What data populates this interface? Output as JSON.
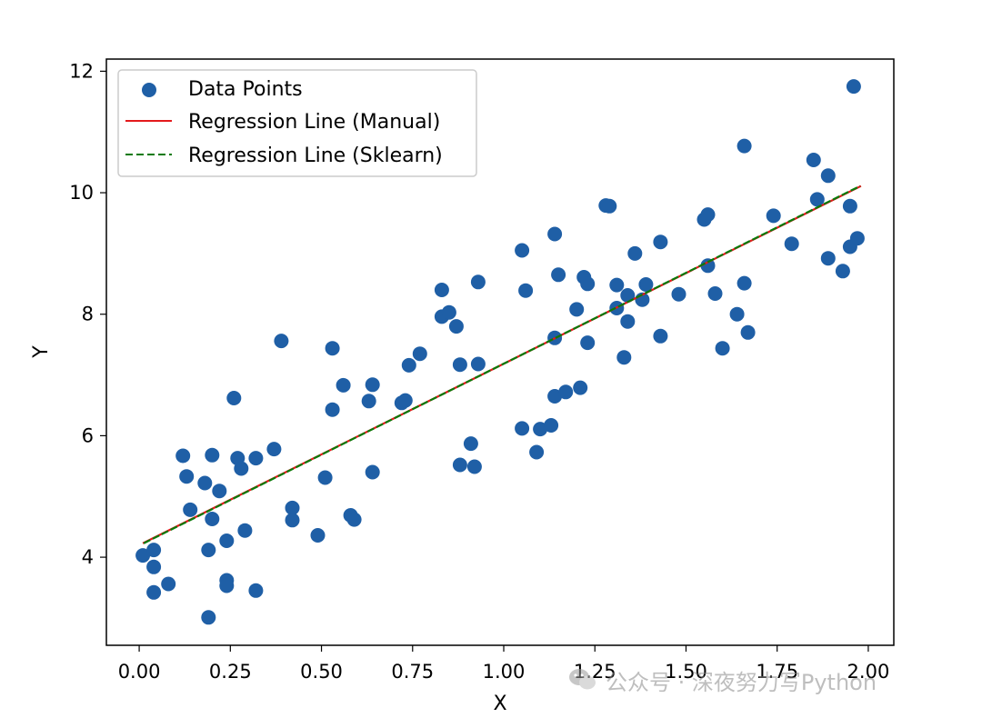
{
  "colors": {
    "points": "#1f5fa6",
    "manual_line": "#e41a1c",
    "sklearn_line": "#0a7a0a"
  },
  "watermark": {
    "text": "公众号 · 深夜努力写Python",
    "icon": "wechat-icon"
  },
  "chart_data": {
    "type": "scatter",
    "title": "",
    "xlabel": "X",
    "ylabel": "Y",
    "xlim": [
      -0.09,
      2.07
    ],
    "ylim": [
      2.55,
      12.2
    ],
    "xticks": [
      "0.00",
      "0.25",
      "0.50",
      "0.75",
      "1.00",
      "1.25",
      "1.50",
      "1.75",
      "2.00"
    ],
    "yticks": [
      "4",
      "6",
      "8",
      "10",
      "12"
    ],
    "grid": false,
    "legend": {
      "placement": "top-left",
      "entries": [
        "Data Points",
        "Regression Line (Manual)",
        "Regression Line (Sklearn)"
      ]
    },
    "series": [
      {
        "name": "Data Points",
        "kind": "scatter",
        "points": [
          [
            0.01,
            4.03
          ],
          [
            0.04,
            4.12
          ],
          [
            0.04,
            3.84
          ],
          [
            0.04,
            3.42
          ],
          [
            0.08,
            3.56
          ],
          [
            0.12,
            5.67
          ],
          [
            0.13,
            5.33
          ],
          [
            0.14,
            4.78
          ],
          [
            0.18,
            5.22
          ],
          [
            0.19,
            3.01
          ],
          [
            0.19,
            4.12
          ],
          [
            0.2,
            5.68
          ],
          [
            0.2,
            4.63
          ],
          [
            0.22,
            5.09
          ],
          [
            0.24,
            4.27
          ],
          [
            0.24,
            3.62
          ],
          [
            0.24,
            3.53
          ],
          [
            0.26,
            6.62
          ],
          [
            0.27,
            5.63
          ],
          [
            0.28,
            5.46
          ],
          [
            0.29,
            4.44
          ],
          [
            0.32,
            3.45
          ],
          [
            0.32,
            5.63
          ],
          [
            0.37,
            5.78
          ],
          [
            0.39,
            7.56
          ],
          [
            0.42,
            4.81
          ],
          [
            0.42,
            4.61
          ],
          [
            0.49,
            4.36
          ],
          [
            0.51,
            5.31
          ],
          [
            0.53,
            7.44
          ],
          [
            0.53,
            6.43
          ],
          [
            0.56,
            6.83
          ],
          [
            0.58,
            4.69
          ],
          [
            0.59,
            4.62
          ],
          [
            0.63,
            6.57
          ],
          [
            0.64,
            6.84
          ],
          [
            0.64,
            5.4
          ],
          [
            0.72,
            6.54
          ],
          [
            0.73,
            6.58
          ],
          [
            0.74,
            7.16
          ],
          [
            0.77,
            7.35
          ],
          [
            0.83,
            8.4
          ],
          [
            0.83,
            7.96
          ],
          [
            0.85,
            8.03
          ],
          [
            0.87,
            7.8
          ],
          [
            0.88,
            5.52
          ],
          [
            0.88,
            7.17
          ],
          [
            0.91,
            5.87
          ],
          [
            0.92,
            5.49
          ],
          [
            0.93,
            8.53
          ],
          [
            0.93,
            7.18
          ],
          [
            1.05,
            9.05
          ],
          [
            1.05,
            6.12
          ],
          [
            1.06,
            8.39
          ],
          [
            1.09,
            5.73
          ],
          [
            1.1,
            6.11
          ],
          [
            1.13,
            6.17
          ],
          [
            1.14,
            9.32
          ],
          [
            1.14,
            7.61
          ],
          [
            1.14,
            6.65
          ],
          [
            1.15,
            8.65
          ],
          [
            1.17,
            6.72
          ],
          [
            1.2,
            8.08
          ],
          [
            1.21,
            6.79
          ],
          [
            1.22,
            8.61
          ],
          [
            1.23,
            7.53
          ],
          [
            1.23,
            8.5
          ],
          [
            1.28,
            9.79
          ],
          [
            1.29,
            9.78
          ],
          [
            1.31,
            8.48
          ],
          [
            1.31,
            8.1
          ],
          [
            1.33,
            7.29
          ],
          [
            1.34,
            8.31
          ],
          [
            1.34,
            7.88
          ],
          [
            1.36,
            9.0
          ],
          [
            1.38,
            8.24
          ],
          [
            1.39,
            8.49
          ],
          [
            1.43,
            9.19
          ],
          [
            1.43,
            7.64
          ],
          [
            1.48,
            8.33
          ],
          [
            1.55,
            9.56
          ],
          [
            1.56,
            9.64
          ],
          [
            1.56,
            8.8
          ],
          [
            1.58,
            8.34
          ],
          [
            1.6,
            7.44
          ],
          [
            1.64,
            8.0
          ],
          [
            1.66,
            10.77
          ],
          [
            1.66,
            8.51
          ],
          [
            1.67,
            7.7
          ],
          [
            1.74,
            9.62
          ],
          [
            1.79,
            9.16
          ],
          [
            1.85,
            10.54
          ],
          [
            1.86,
            9.89
          ],
          [
            1.89,
            10.28
          ],
          [
            1.89,
            8.92
          ],
          [
            1.93,
            8.71
          ],
          [
            1.95,
            9.78
          ],
          [
            1.95,
            9.11
          ],
          [
            1.96,
            11.75
          ],
          [
            1.97,
            9.25
          ]
        ]
      },
      {
        "name": "Regression Line (Manual)",
        "kind": "line-solid",
        "x": [
          0.01,
          1.98
        ],
        "y": [
          4.23,
          10.11
        ]
      },
      {
        "name": "Regression Line (Sklearn)",
        "kind": "line-dashed",
        "x": [
          0.01,
          1.98
        ],
        "y": [
          4.23,
          10.11
        ]
      }
    ]
  }
}
